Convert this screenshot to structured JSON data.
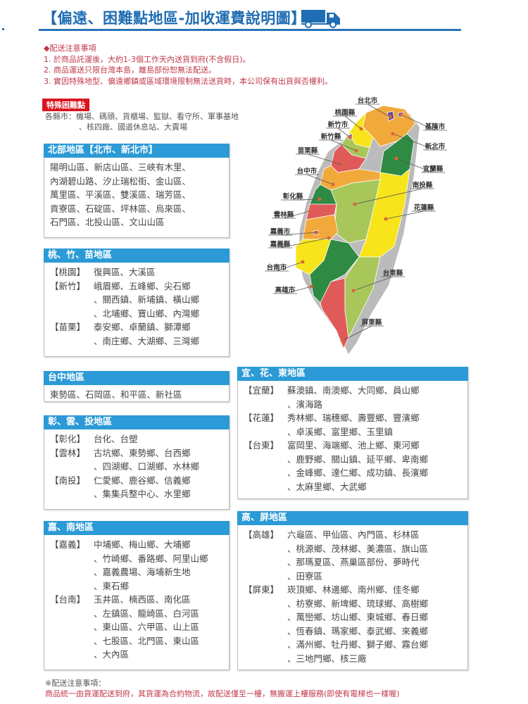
{
  "title": "【偏遠、困難點地區-加收運費說明圖】",
  "truck_icon": "truck-icon",
  "colors": {
    "title": "#1f6db3",
    "header": "#2b9ad6",
    "notice": "#c0394b",
    "tag": "#d9141e"
  },
  "notes": {
    "heading": "◆配送注意事項",
    "items": [
      "1. 於商品託運後，大約1-3個工作天內送貨到府(不含假日)。",
      "2. 商品運送只限台灣本島，離島部份恕無法配送。",
      "3. 實因特殊地型、偏遠鄉鎮或區域環境限制無法送貨時，本公司保有出貨與否權利。"
    ]
  },
  "special": {
    "tag": "特殊困難點",
    "line1": "各縣市：機場、碼頭、貨櫃場、監獄、看守所、軍事基地",
    "line2": "、核四廠、國道休息站、大賣場"
  },
  "panels": [
    {
      "id": "north",
      "title": "北部地區【北市、新北市】",
      "groups": [
        {
          "label": "",
          "lines": [
            "陽明山區、新店山區、三峽有木里、",
            "內湖碧山路、汐止瑞松街、金山區、",
            "萬里區、平溪區、雙溪區、瑞芳區、",
            "貢寮區、石碇區、坪林區、烏來區、",
            "石門區、北投山區、文山山區"
          ]
        }
      ]
    },
    {
      "id": "taoyuan-hsinchu-miaoli",
      "title": "桃、竹、苗地區",
      "groups": [
        {
          "label": "【桃園】",
          "lines": [
            "復興區、大溪區"
          ]
        },
        {
          "label": "【新竹】",
          "lines": [
            "峨眉鄉、五峰鄉、尖石鄉",
            "、關西鎮、新埔鎮、橫山鄉",
            "、北埔鄉、寶山鄉、內灣鄉"
          ]
        },
        {
          "label": "【苗栗】",
          "lines": [
            "泰安鄉、卓蘭鎮、獅潭鄉",
            "、南庄鄉、大湖鄉、三灣鄉"
          ]
        }
      ]
    },
    {
      "id": "taichung",
      "title": "台中地區",
      "groups": [
        {
          "label": "",
          "lines": [
            "東勢區、石岡區、和平區、新社區"
          ]
        }
      ]
    },
    {
      "id": "changhua-yunlin-nantou",
      "title": "彰、雲、投地區",
      "groups": [
        {
          "label": "【彰化】",
          "lines": [
            "台化、台塑"
          ]
        },
        {
          "label": "【雲林】",
          "lines": [
            "古坑鄉、東勢鄉、台西鄉",
            "、四湖鄉、口湖鄉、水林鄉"
          ]
        },
        {
          "label": "【南投】",
          "lines": [
            "仁愛鄉、鹿谷鄉、信義鄉",
            "、集集兵整中心、水里鄉"
          ]
        }
      ]
    },
    {
      "id": "chiayi-tainan",
      "title": "嘉、南地區",
      "groups": [
        {
          "label": "【嘉義】",
          "lines": [
            "中埔鄉、梅山鄉、大埔鄉",
            "、竹崎鄉、番路鄉、阿里山鄉",
            "、嘉義農場、海埔新生地",
            "、東石鄉"
          ]
        },
        {
          "label": "【台南】",
          "lines": [
            "玉井區、楠西區、南化區",
            "、左鎮區、龍崎區、白河區",
            "、東山區、六甲區、山上區",
            "、七股區、北門區、東山區",
            "、大內區"
          ]
        }
      ]
    },
    {
      "id": "yilan-hualien-taitung",
      "title": "宜、花、東地區",
      "groups": [
        {
          "label": "【宜蘭】",
          "lines": [
            "蘇澳鎮、南澳鄉、大同鄉、員山鄉",
            "、濱海路"
          ]
        },
        {
          "label": "【花蓮】",
          "lines": [
            "秀林鄉、瑞穗鄉、壽豐鄉、豐濱鄉",
            "、卓溪鄉、富里鄉、玉里鎮"
          ]
        },
        {
          "label": "【台東】",
          "lines": [
            "富岡里、海端鄉、池上鄉、東河鄉",
            "、鹿野鄉、關山鎮、延平鄉、卑南鄉",
            "、金峰鄉、達仁鄉、成功鎮、長濱鄉",
            "、太麻里鄉、大武鄉"
          ]
        }
      ]
    },
    {
      "id": "kaohsiung-pingtung",
      "title": "高、屏地區",
      "groups": [
        {
          "label": "【高雄】",
          "lines": [
            "六龜區、甲仙區、內門區、杉林區",
            "、桃源鄉、茂林鄉、美濃區、旗山區",
            "、那瑪夏區、燕巢區部份、夢時代",
            "、田寮區"
          ]
        },
        {
          "label": "【屏東】",
          "lines": [
            "崁頂鄉、林邊鄉、南州鄉、佳冬鄉",
            "、枋寮鄉、新埤鄉、琉球鄉、高樹鄉",
            "、萬巒鄉、坊山鄉、東城鄉、春日鄉",
            "、恆春鎮、瑪家鄉、泰武鄉、來義鄉",
            "、滿州鄉、牡丹鄉、獅子鄉、霧台鄉",
            "、三地門鄉、核三廠"
          ]
        }
      ]
    }
  ],
  "map": {
    "labels": [
      "台北市",
      "桃園縣",
      "新竹市",
      "新竹縣",
      "苗栗縣",
      "台中市",
      "彰化縣",
      "雲林縣",
      "嘉義市",
      "嘉義縣",
      "台南市",
      "高雄市",
      "基隆市",
      "新北市",
      "宜蘭縣",
      "南投縣",
      "花蓮縣",
      "台東縣",
      "屏東縣"
    ],
    "region_colors": {
      "orange": "#f2a93b",
      "yellow": "#f7e41a",
      "lightgreen": "#a8c75a",
      "darkgreen": "#2f8a43",
      "red": "#e05a5a",
      "purple": "#6a4c9c"
    }
  },
  "footer": {
    "heading": "※配送注意事項：",
    "text": "商品統一由貨運配送到府，其貨運為合約物流，故配送僅至一樓，無搬運上樓服務(即使有電梯也一樣喔)"
  }
}
